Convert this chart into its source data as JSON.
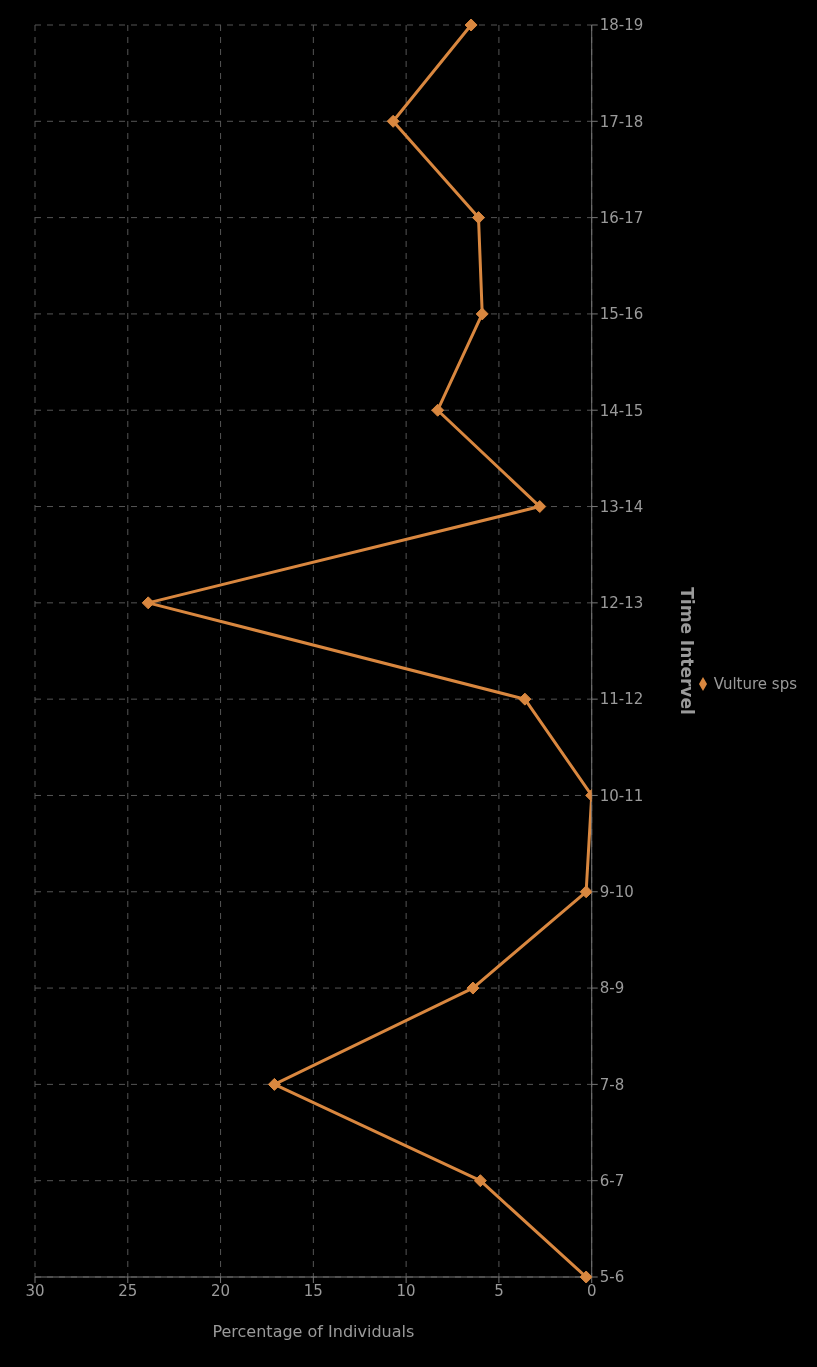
{
  "chart_data": {
    "type": "line",
    "orientation": "horizontal",
    "xlabel": "Percentage of Individuals",
    "ylabel": "Time Intervel",
    "categories": [
      "18-19",
      "17-18",
      "16-17",
      "15-16",
      "14-15",
      "13-14",
      "12-13",
      "11-12",
      "10-11",
      "9-10",
      "8-9",
      "7-8",
      "6-7",
      "5-6"
    ],
    "series": [
      {
        "name": "Vulture sps",
        "color": "#d9873f",
        "values": [
          6.5,
          10.7,
          6.1,
          5.9,
          8.3,
          2.8,
          23.9,
          3.6,
          0,
          0.3,
          6.4,
          17.1,
          6,
          0.3
        ]
      }
    ],
    "xlim": [
      30,
      0
    ],
    "xticks": [
      30,
      25,
      20,
      15,
      10,
      5,
      0
    ],
    "grid": true,
    "legend": "right",
    "marker": "diamond",
    "line_style": "solid"
  }
}
